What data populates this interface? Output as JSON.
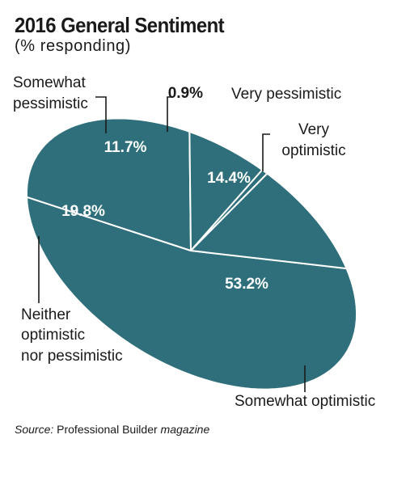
{
  "chart_data": {
    "type": "pie",
    "title": "2016 General Sentiment",
    "subtitle": "(% responding)",
    "unit": "%",
    "slices": [
      {
        "label": "Somewhat optimistic",
        "value": 53.2,
        "value_label": "53.2%",
        "label_lines": [
          "Somewhat optimistic"
        ]
      },
      {
        "label": "Neither optimistic nor pessimistic",
        "value": 19.8,
        "value_label": "19.8%",
        "label_lines": [
          "Neither",
          "optimistic",
          "nor pessimistic"
        ]
      },
      {
        "label": "Somewhat pessimistic",
        "value": 11.7,
        "value_label": "11.7%",
        "label_lines": [
          "Somewhat",
          "pessimistic"
        ]
      },
      {
        "label": "Very pessimistic",
        "value": 0.9,
        "value_label": "0.9%",
        "label_lines": [
          "Very pessimistic"
        ]
      },
      {
        "label": "Very optimistic",
        "value": 14.4,
        "value_label": "14.4%",
        "label_lines": [
          "Very",
          "optimistic"
        ]
      }
    ],
    "colors": {
      "slice": "#2f6f7b",
      "separator": "#ffffff",
      "text": "#1a1a1a",
      "value_text": "#ffffff"
    }
  },
  "source": {
    "label": "Source:",
    "publication": "Professional Builder",
    "suffix": "magazine"
  }
}
